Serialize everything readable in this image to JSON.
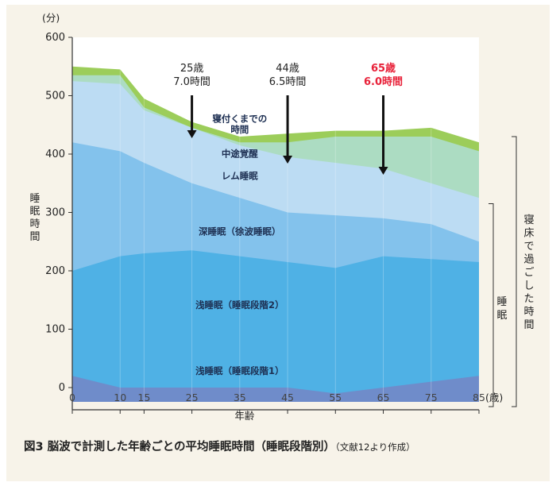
{
  "chart_data": {
    "type": "area",
    "x": [
      0,
      10,
      15,
      25,
      35,
      45,
      55,
      65,
      75,
      85
    ],
    "xlabel": "年齢",
    "xunit": "(歳)",
    "yunit": "(分)",
    "ylabel": "睡眠時間",
    "ylim": [
      0,
      600
    ],
    "yticks": [
      0,
      100,
      200,
      300,
      400,
      500,
      600
    ],
    "layers": [
      {
        "name": "浅睡眠（睡眠段階1）",
        "upper": [
          20,
          0,
          0,
          0,
          0,
          0,
          -10,
          0,
          10,
          20
        ],
        "color": "#6f8cca"
      },
      {
        "name": "浅睡眠（睡眠段階2）",
        "upper": [
          200,
          225,
          230,
          235,
          225,
          215,
          205,
          225,
          220,
          215
        ],
        "color": "#4fb1e5"
      },
      {
        "name": "深睡眠（徐波睡眠）",
        "upper": [
          420,
          405,
          385,
          350,
          325,
          300,
          295,
          290,
          280,
          250
        ],
        "color": "#83c2ec"
      },
      {
        "name": "レム睡眠",
        "upper": [
          525,
          520,
          475,
          445,
          415,
          395,
          385,
          375,
          350,
          325
        ],
        "color": "#bcdcf3"
      },
      {
        "name": "中途覚醒",
        "upper": [
          535,
          535,
          480,
          445,
          420,
          420,
          430,
          430,
          430,
          405
        ],
        "color": "#acdcc2"
      },
      {
        "name": "寝付くまでの時間",
        "upper": [
          550,
          545,
          495,
          455,
          430,
          435,
          440,
          440,
          445,
          420
        ],
        "color": "#9ccd5a"
      }
    ],
    "annotations": [
      {
        "x": 25,
        "age": "25歳",
        "time": "7.0時間",
        "highlight": false
      },
      {
        "x": 45,
        "age": "44歳",
        "time": "6.5時間",
        "highlight": true
      },
      {
        "x": 65,
        "age": "65歳",
        "time": "6.0時間",
        "highlight": true
      }
    ],
    "layer_labels": [
      {
        "text": "寝付くまでの",
        "x": 35,
        "y": 455
      },
      {
        "text": "時間",
        "x": 35,
        "y": 437
      },
      {
        "text": "中途覚醒",
        "x": 35,
        "y": 395
      },
      {
        "text": "レム睡眠",
        "x": 35,
        "y": 357
      },
      {
        "text": "深睡眠（徐波睡眠）",
        "x": 35,
        "y": 262
      },
      {
        "text": "浅睡眠（睡眠段階2）",
        "x": 35,
        "y": 136
      },
      {
        "text": "浅睡眠（睡眠段階1）",
        "x": 35,
        "y": 23
      }
    ],
    "brackets": {
      "sleep": "睡眠",
      "in_bed": "寝床で過ごした時間"
    }
  },
  "caption": {
    "main": "図3  脳波で計測した年齢ごとの平均睡眠時間（睡眠段階別）",
    "source": "（文献12より作成）"
  },
  "colors": {
    "highlight": "#e8223a",
    "axis": "#333333",
    "text": "#222222"
  }
}
